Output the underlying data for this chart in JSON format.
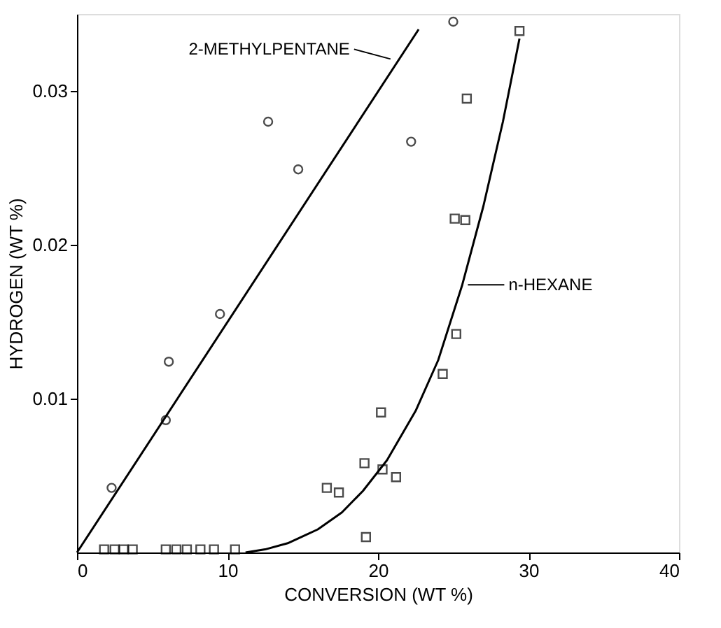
{
  "chart_data": {
    "type": "scatter",
    "xlabel": "CONVERSION (WT %)",
    "ylabel": "HYDROGEN (WT %)",
    "xlim": [
      0,
      40
    ],
    "xticks": [
      0,
      10,
      20,
      30,
      40
    ],
    "ylim": [
      0,
      0.035
    ],
    "yticks": [
      0.01,
      0.02,
      0.03
    ],
    "grid": false,
    "series": [
      {
        "type": "scatter",
        "marker": "circle",
        "color": "#000000",
        "x": [
          2.3,
          5.9,
          6.1,
          9.5,
          12.7,
          14.7,
          22.2,
          25.0
        ],
        "values": [
          0.0042,
          0.0086,
          0.0124,
          0.0155,
          0.028,
          0.0249,
          0.0267,
          0.0345
        ]
      },
      {
        "type": "scatter",
        "marker": "square",
        "color": "#000000",
        "x": [
          1.8,
          2.5,
          3.1,
          3.7,
          5.9,
          6.6,
          7.3,
          8.2,
          9.1,
          10.5,
          16.6,
          17.4,
          19.1,
          19.2,
          20.2,
          20.3,
          21.2,
          24.3,
          25.2,
          25.1,
          25.8,
          25.9,
          29.4
        ],
        "values": [
          0.0002,
          0.0002,
          0.0002,
          0.0002,
          0.0002,
          0.0002,
          0.0002,
          0.0002,
          0.0002,
          0.0002,
          0.0042,
          0.0039,
          0.0058,
          0.001,
          0.0091,
          0.0054,
          0.0049,
          0.0116,
          0.0142,
          0.0217,
          0.0216,
          0.0295,
          0.0339
        ]
      },
      {
        "type": "line",
        "color": "#000000",
        "x": [
          0,
          22.7
        ],
        "values": [
          0,
          0.034
        ]
      },
      {
        "type": "line",
        "color": "#000000",
        "x": [
          11.2,
          12.5,
          14,
          16,
          17.6,
          19,
          20.6,
          22.5,
          24,
          25.6,
          27,
          28.3,
          29.4
        ],
        "values": [
          0,
          0.0002,
          0.0006,
          0.0015,
          0.0026,
          0.004,
          0.006,
          0.0092,
          0.0125,
          0.0174,
          0.0225,
          0.028,
          0.0334
        ]
      }
    ],
    "annotations": [
      {
        "text": "2-METHYLPENTANE",
        "x": 21.2,
        "y": 0.0318
      },
      {
        "text": "n-HEXANE",
        "x": 25.6,
        "y": 0.0174
      }
    ]
  }
}
